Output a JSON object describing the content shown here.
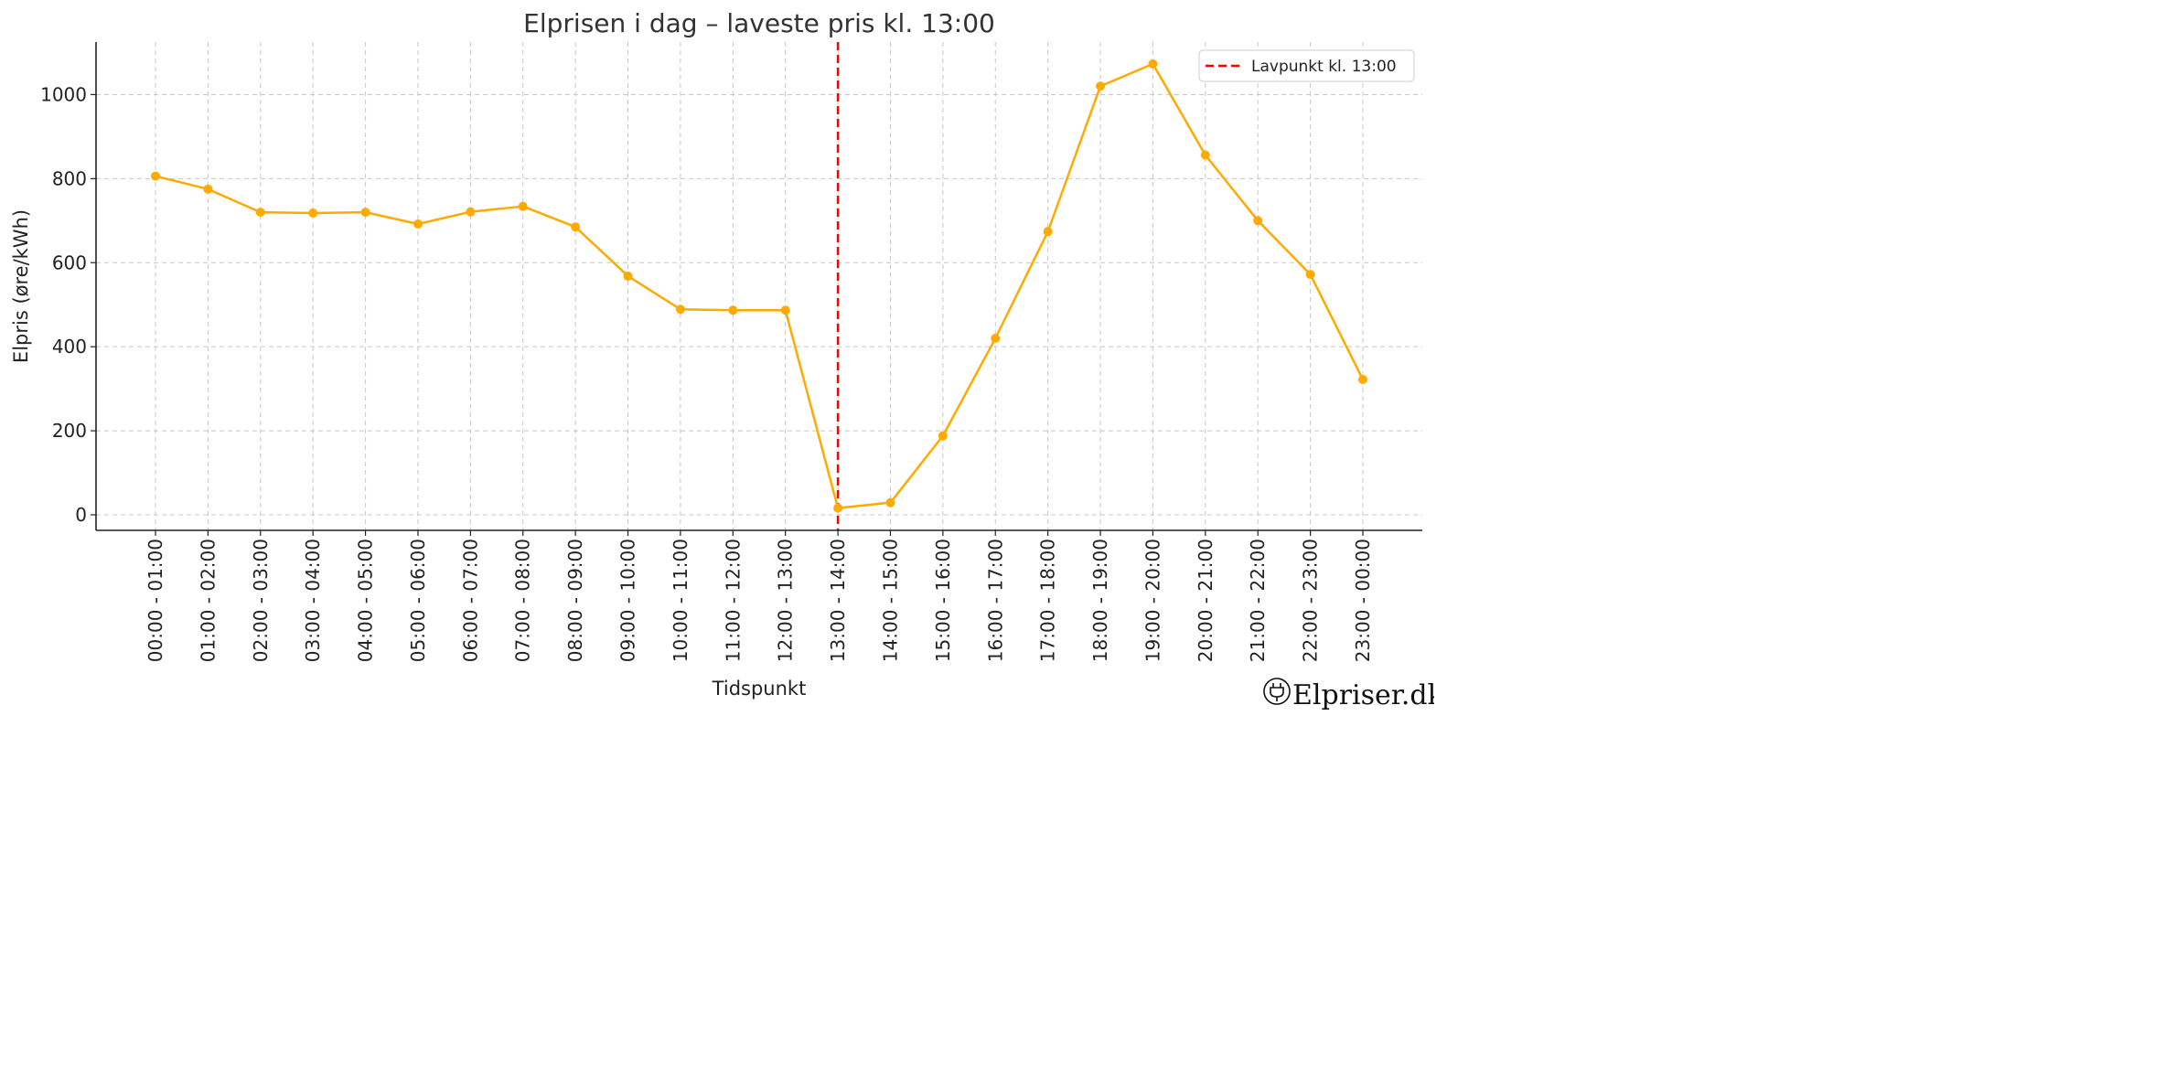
{
  "chart_data": {
    "type": "line",
    "title": "Elprisen i dag – laveste pris kl. 13:00",
    "xlabel": "Tidspunkt",
    "ylabel": "Elpris (øre/kWh)",
    "categories": [
      "00:00 - 01:00",
      "01:00 - 02:00",
      "02:00 - 03:00",
      "03:00 - 04:00",
      "04:00 - 05:00",
      "05:00 - 06:00",
      "06:00 - 07:00",
      "07:00 - 08:00",
      "08:00 - 09:00",
      "09:00 - 10:00",
      "10:00 - 11:00",
      "11:00 - 12:00",
      "12:00 - 13:00",
      "13:00 - 14:00",
      "14:00 - 15:00",
      "15:00 - 16:00",
      "16:00 - 17:00",
      "17:00 - 18:00",
      "18:00 - 19:00",
      "19:00 - 20:00",
      "20:00 - 21:00",
      "21:00 - 22:00",
      "22:00 - 23:00",
      "23:00 - 00:00"
    ],
    "series": [
      {
        "values": [
          806,
          775,
          720,
          718,
          720,
          692,
          721,
          734,
          685,
          568,
          489,
          487,
          487,
          16,
          29,
          188,
          420,
          674,
          1020,
          1073,
          856,
          700,
          572,
          322
        ],
        "color": "#FFAA00"
      }
    ],
    "ylim": [
      -37,
      1125
    ],
    "yticks": [
      0,
      200,
      400,
      600,
      800,
      1000
    ],
    "grid": true,
    "marker_line": {
      "category_index": 13,
      "label": "Lavpunkt kl. 13:00",
      "color": "#FF0000",
      "style": "dashed"
    },
    "legend": {
      "placement": "top-right"
    }
  },
  "watermark": {
    "icon": "plug-icon",
    "text": "Elpriser.dk"
  }
}
